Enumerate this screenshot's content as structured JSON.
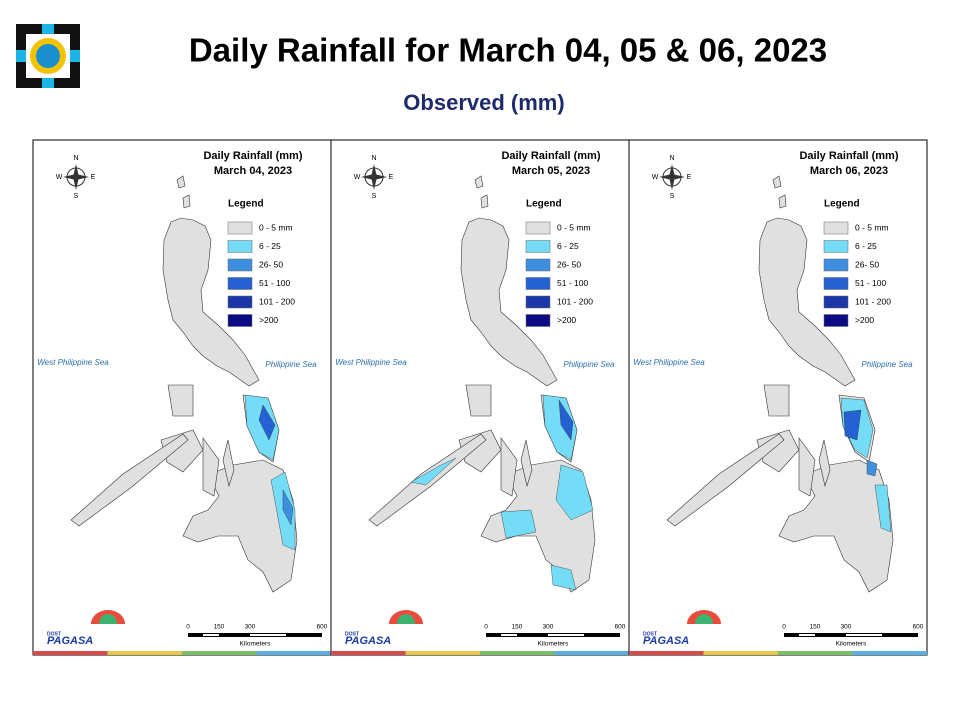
{
  "header": {
    "title": "Daily Rainfall for March 04, 05 & 06, 2023",
    "subtitle": "Observed (mm)"
  },
  "map_labels": {
    "title": "Daily Rainfall (mm)",
    "legend_title": "Legend",
    "west_sea": "West Philippine Sea",
    "east_sea": "Philippine Sea",
    "compass": [
      "N",
      "W",
      "E",
      "S"
    ],
    "scale_ticks": [
      "0",
      "150",
      "300",
      "600"
    ],
    "scale_unit": "Kilometers",
    "logo_agency": "DOST",
    "logo_name": "PAGASA"
  },
  "legend": [
    {
      "label": "0 - 5 mm",
      "color": "#e0e0e0"
    },
    {
      "label": "6 - 25",
      "color": "#74dcf7"
    },
    {
      "label": "26- 50",
      "color": "#3f8fe0"
    },
    {
      "label": "51 - 100",
      "color": "#2462d4"
    },
    {
      "label": "101 - 200",
      "color": "#1b36a6"
    },
    {
      "label": ">200",
      "color": "#0b0b86"
    }
  ],
  "panels": [
    {
      "date": "March 04, 2023"
    },
    {
      "date": "March 05, 2023"
    },
    {
      "date": "March 06, 2023"
    }
  ]
}
